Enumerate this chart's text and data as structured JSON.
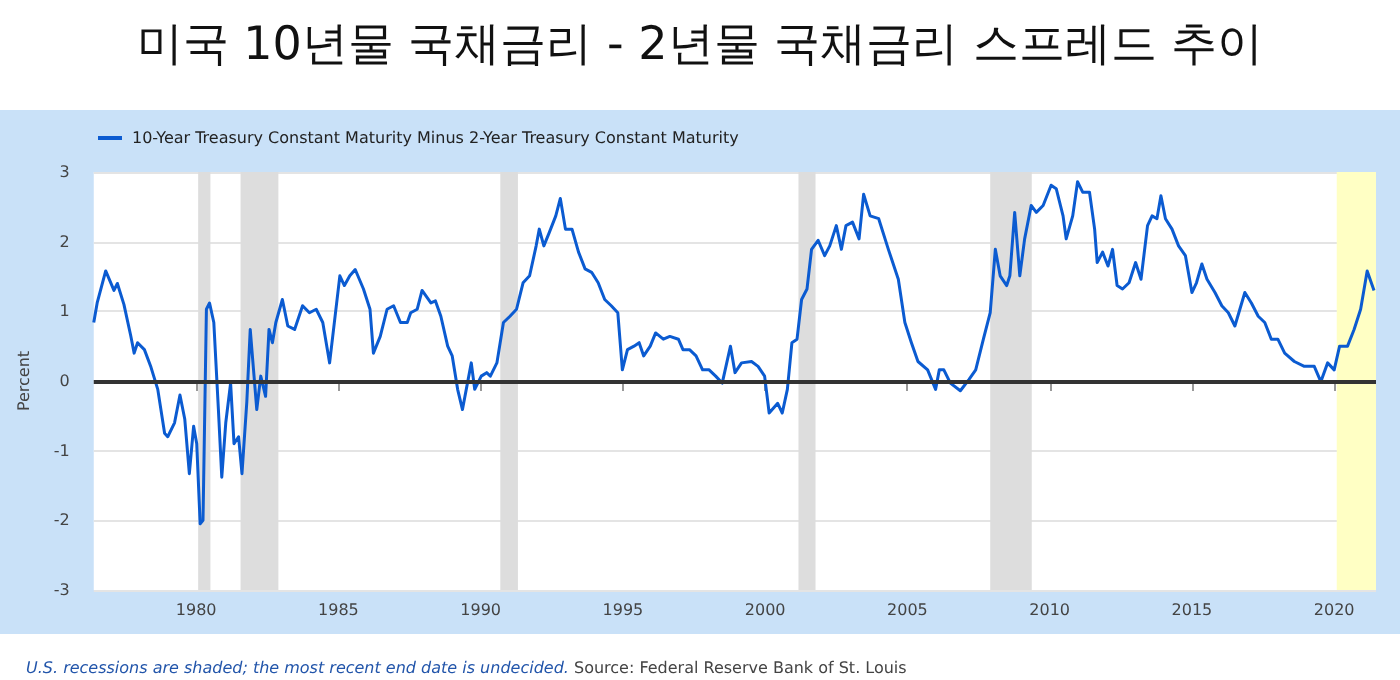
{
  "chart_data": {
    "type": "line",
    "title": "미국 10년물 국채금리 - 2년물 국채금리 스프레드 추이",
    "ylabel": "Percent",
    "annotations": [
      "U.S. recessions are shaded; the most recent end date is undecided.",
      "Source: Federal Reserve Bank of St. Louis"
    ],
    "xlim": [
      1976.4,
      2021.47
    ],
    "xticks": [
      1980,
      1985,
      1990,
      1995,
      2000,
      2005,
      2010,
      2015,
      2020
    ],
    "ylim": [
      -3,
      3
    ],
    "yticks": [
      -3,
      -2,
      -1,
      0,
      1,
      2,
      3
    ],
    "grid": "y",
    "legend": "top left",
    "line_style": "solid",
    "marker": "none",
    "ref_lines": [
      {
        "axis": "y",
        "value": 0,
        "color": "#333333"
      }
    ],
    "bands": [
      {
        "axis": "x",
        "from": 1980.07,
        "to": 1980.5,
        "color": "#dddddd"
      },
      {
        "axis": "x",
        "from": 1981.56,
        "to": 1982.89,
        "color": "#dddddd"
      },
      {
        "axis": "x",
        "from": 1990.69,
        "to": 1991.31,
        "color": "#dddddd"
      },
      {
        "axis": "x",
        "from": 2001.17,
        "to": 2001.77,
        "color": "#dddddd"
      },
      {
        "axis": "x",
        "from": 2007.91,
        "to": 2009.37,
        "color": "#dddddd"
      },
      {
        "axis": "x",
        "from": 2020.09,
        "to": 2021.47,
        "color": "#ffffc4"
      }
    ],
    "series": [
      {
        "name": "10-Year Treasury Constant Maturity Minus 2-Year Treasury Constant Maturity",
        "color": "#0b5bd1",
        "x": [
          1976.4,
          1976.52,
          1976.82,
          1977.11,
          1977.23,
          1977.46,
          1977.7,
          1977.82,
          1977.94,
          1978.18,
          1978.41,
          1978.65,
          1978.89,
          1979.0,
          1979.24,
          1979.43,
          1979.6,
          1979.76,
          1979.91,
          1980.02,
          1980.14,
          1980.24,
          1980.36,
          1980.47,
          1980.62,
          1980.78,
          1980.9,
          1981.04,
          1981.21,
          1981.33,
          1981.49,
          1981.61,
          1981.78,
          1981.9,
          1982.13,
          1982.27,
          1982.44,
          1982.56,
          1982.68,
          1982.8,
          1983.03,
          1983.22,
          1983.46,
          1983.74,
          1983.98,
          1984.22,
          1984.45,
          1984.69,
          1985.05,
          1985.21,
          1985.4,
          1985.59,
          1985.88,
          1986.11,
          1986.23,
          1986.47,
          1986.71,
          1986.94,
          1987.18,
          1987.42,
          1987.54,
          1987.77,
          1987.94,
          1988.25,
          1988.41,
          1988.6,
          1988.84,
          1989.0,
          1989.19,
          1989.36,
          1989.67,
          1989.79,
          1990.02,
          1990.21,
          1990.34,
          1990.57,
          1990.8,
          1991.03,
          1991.26,
          1991.49,
          1991.72,
          1991.95,
          1992.06,
          1992.22,
          1992.41,
          1992.64,
          1992.8,
          1992.98,
          1993.21,
          1993.44,
          1993.67,
          1993.9,
          1994.13,
          1994.36,
          1994.59,
          1994.82,
          1994.98,
          1995.16,
          1995.39,
          1995.57,
          1995.73,
          1995.96,
          1996.15,
          1996.42,
          1996.65,
          1996.95,
          1997.11,
          1997.34,
          1997.57,
          1997.8,
          1998.03,
          1998.26,
          1998.49,
          1998.78,
          1998.94,
          1999.17,
          1999.52,
          1999.75,
          1999.98,
          2000.14,
          2000.44,
          2000.6,
          2000.78,
          2000.94,
          2001.12,
          2001.28,
          2001.47,
          2001.63,
          2001.86,
          2002.09,
          2002.27,
          2002.5,
          2002.68,
          2002.84,
          2003.07,
          2003.3,
          2003.46,
          2003.69,
          2003.99,
          2004.33,
          2004.68,
          2004.91,
          2005.14,
          2005.37,
          2005.71,
          2005.99,
          2006.12,
          2006.28,
          2006.51,
          2006.86,
          2007.16,
          2007.4,
          2007.67,
          2007.91,
          2008.09,
          2008.26,
          2008.49,
          2008.6,
          2008.77,
          2008.95,
          2009.12,
          2009.35,
          2009.53,
          2009.77,
          2010.05,
          2010.23,
          2010.47,
          2010.58,
          2010.81,
          2010.98,
          2011.16,
          2011.4,
          2011.58,
          2011.67,
          2011.86,
          2012.05,
          2012.21,
          2012.37,
          2012.56,
          2012.79,
          2013.02,
          2013.21,
          2013.44,
          2013.6,
          2013.77,
          2013.91,
          2014.07,
          2014.3,
          2014.53,
          2014.77,
          2015.0,
          2015.16,
          2015.35,
          2015.53,
          2015.81,
          2016.05,
          2016.28,
          2016.51,
          2016.86,
          2017.09,
          2017.33,
          2017.56,
          2017.79,
          2018.02,
          2018.26,
          2018.6,
          2018.95,
          2019.3,
          2019.53,
          2019.77,
          2020.0,
          2020.19,
          2020.47,
          2020.7,
          2020.93,
          2021.16,
          2021.4
        ],
        "values": [
          0.84,
          1.12,
          1.58,
          1.3,
          1.4,
          1.1,
          0.65,
          0.4,
          0.55,
          0.45,
          0.2,
          -0.12,
          -0.75,
          -0.8,
          -0.6,
          -0.2,
          -0.55,
          -1.33,
          -0.65,
          -0.9,
          -2.05,
          -2.0,
          1.03,
          1.12,
          0.84,
          -0.4,
          -1.38,
          -0.6,
          -0.03,
          -0.9,
          -0.8,
          -1.33,
          -0.3,
          0.74,
          -0.41,
          0.07,
          -0.22,
          0.74,
          0.55,
          0.84,
          1.17,
          0.79,
          0.74,
          1.08,
          0.98,
          1.03,
          0.84,
          0.26,
          1.51,
          1.37,
          1.51,
          1.6,
          1.32,
          1.03,
          0.4,
          0.64,
          1.03,
          1.08,
          0.84,
          0.84,
          0.98,
          1.03,
          1.3,
          1.12,
          1.15,
          0.93,
          0.5,
          0.36,
          -0.12,
          -0.41,
          0.26,
          -0.12,
          0.07,
          0.12,
          0.07,
          0.26,
          0.84,
          0.93,
          1.03,
          1.41,
          1.51,
          1.94,
          2.18,
          1.94,
          2.13,
          2.37,
          2.62,
          2.18,
          2.18,
          1.85,
          1.61,
          1.56,
          1.41,
          1.17,
          1.08,
          0.98,
          0.16,
          0.45,
          0.5,
          0.55,
          0.36,
          0.5,
          0.69,
          0.6,
          0.64,
          0.6,
          0.45,
          0.45,
          0.36,
          0.16,
          0.16,
          0.07,
          -0.03,
          0.5,
          0.12,
          0.26,
          0.28,
          0.21,
          0.07,
          -0.46,
          -0.32,
          -0.46,
          -0.12,
          0.55,
          0.6,
          1.17,
          1.32,
          1.89,
          2.02,
          1.8,
          1.94,
          2.23,
          1.89,
          2.23,
          2.28,
          2.04,
          2.68,
          2.37,
          2.33,
          1.89,
          1.46,
          0.84,
          0.55,
          0.28,
          0.16,
          -0.12,
          0.16,
          0.16,
          -0.03,
          -0.14,
          0.02,
          0.16,
          0.6,
          0.98,
          1.89,
          1.51,
          1.37,
          1.51,
          2.42,
          1.51,
          2.04,
          2.52,
          2.42,
          2.52,
          2.81,
          2.76,
          2.37,
          2.04,
          2.37,
          2.86,
          2.71,
          2.71,
          2.18,
          1.7,
          1.85,
          1.65,
          1.89,
          1.37,
          1.32,
          1.41,
          1.7,
          1.46,
          2.23,
          2.37,
          2.33,
          2.66,
          2.33,
          2.18,
          1.94,
          1.8,
          1.27,
          1.41,
          1.68,
          1.46,
          1.27,
          1.08,
          0.98,
          0.79,
          1.27,
          1.12,
          0.93,
          0.84,
          0.6,
          0.6,
          0.4,
          0.28,
          0.21,
          0.21,
          -0.01,
          0.26,
          0.16,
          0.5,
          0.5,
          0.74,
          1.03,
          1.58,
          1.3
        ]
      }
    ]
  }
}
